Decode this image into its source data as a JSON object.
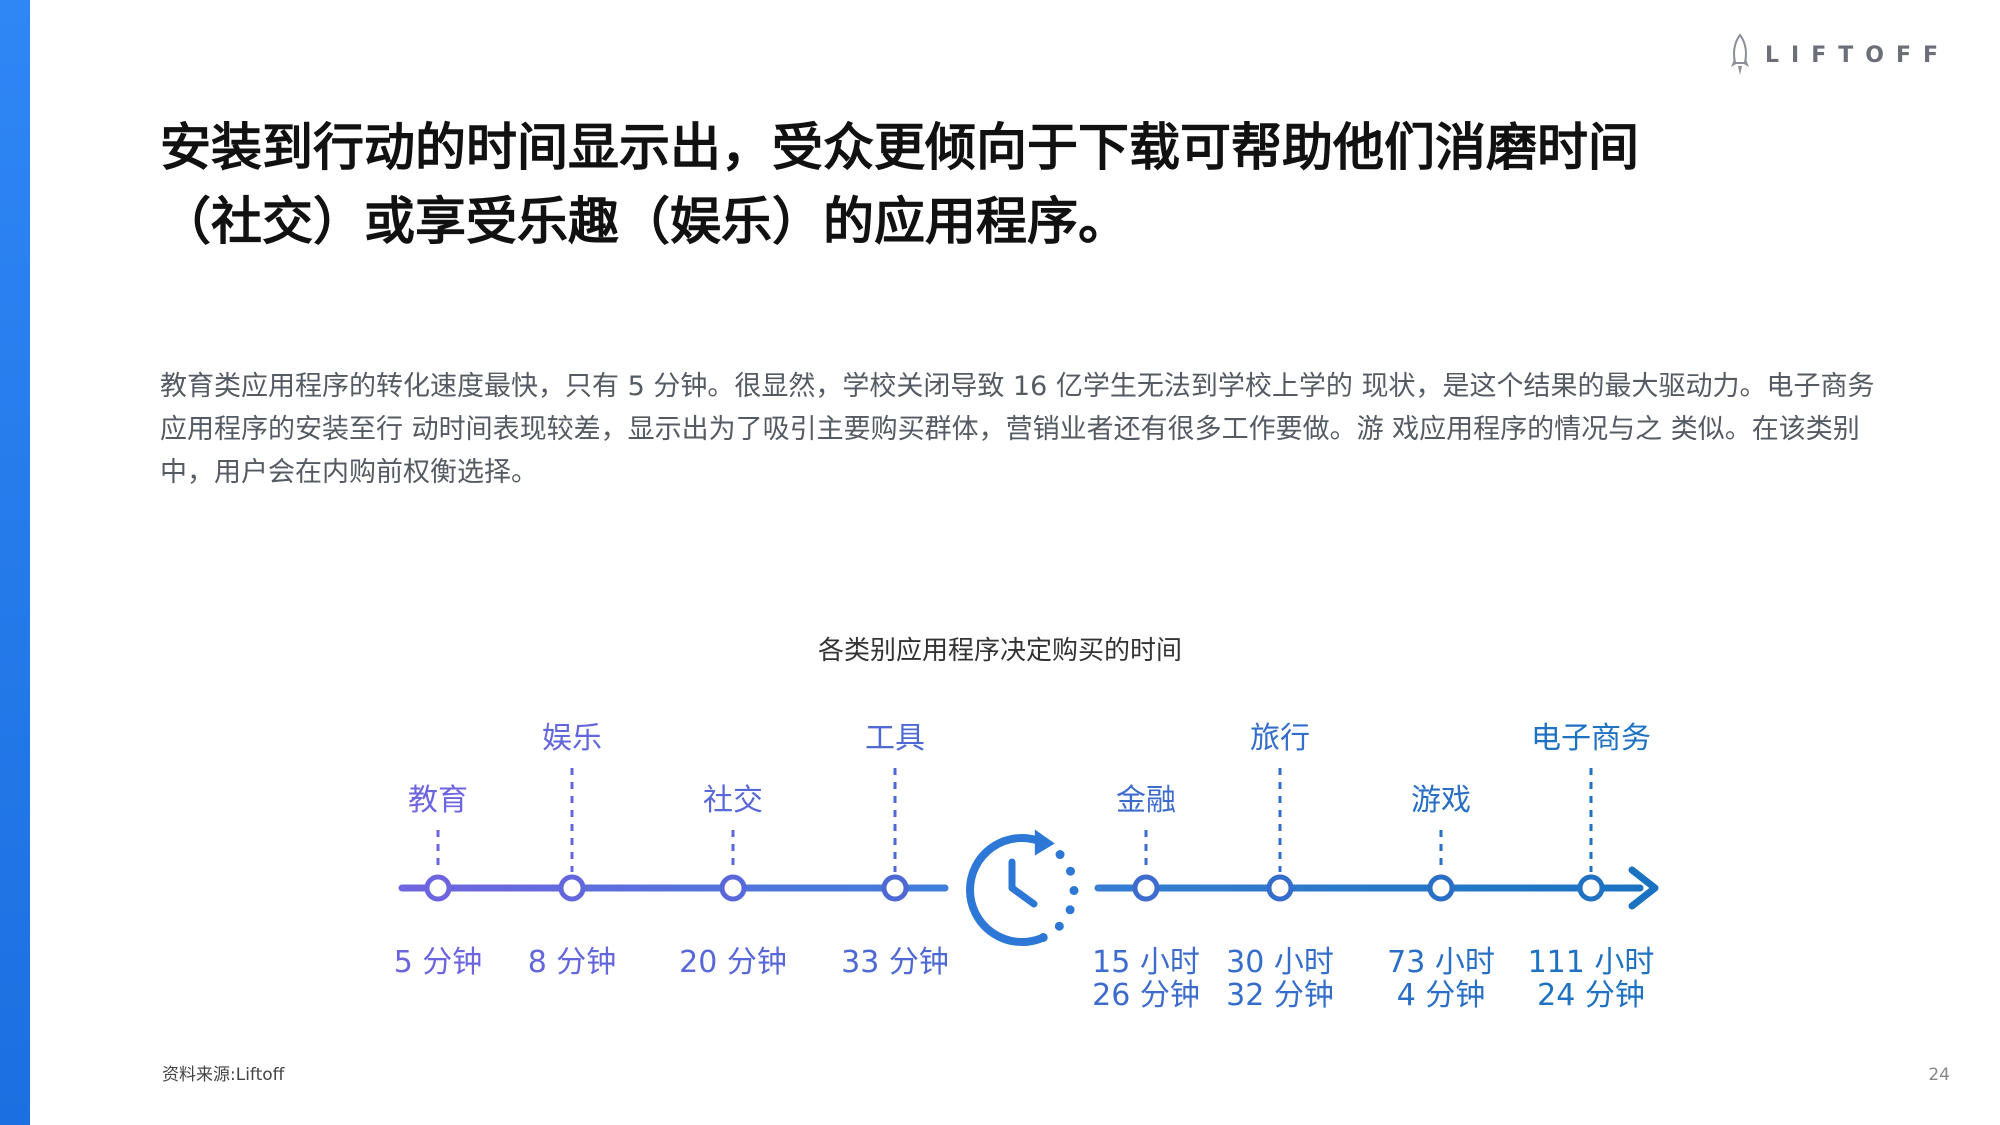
{
  "brand": {
    "logo_text": "LIFTOFF",
    "accent_color": "#1c6fe0",
    "timeline_start_color": "#7064e0",
    "timeline_end_color": "#1a72c0"
  },
  "headline": {
    "line1": "安装到行动的时间显示出，受众更倾向于下载可帮助他们消磨时间",
    "line2": "（社交）或享受乐趣（娱乐）的应用程序。"
  },
  "body": {
    "paragraph": "教育类应用程序的转化速度最快，只有 5 分钟。很显然，学校关闭导致 16 亿学生无法到学校上学的 现状，是这个结果的最大驱动力。电子商务应用程序的安装至行 动时间表现较差，显示出为了吸引主要购买群体，营销业者还有很多工作要做。游 戏应用程序的情况与之 类似。在该类别中，用户会在内购前权衡选择。"
  },
  "chart_data": {
    "type": "timeline",
    "title": "各类别应用程序决定购买的时间",
    "center_icon": "clock-icon",
    "items": [
      {
        "category": "教育",
        "time_lines": [
          "5 分钟"
        ]
      },
      {
        "category": "娱乐",
        "time_lines": [
          "8 分钟"
        ]
      },
      {
        "category": "社交",
        "time_lines": [
          "20 分钟"
        ]
      },
      {
        "category": "工具",
        "time_lines": [
          "33 分钟"
        ]
      },
      {
        "category": "金融",
        "time_lines": [
          "15 小时",
          "26 分钟"
        ]
      },
      {
        "category": "旅行",
        "time_lines": [
          "30 小时",
          "32 分钟"
        ]
      },
      {
        "category": "游戏",
        "time_lines": [
          "73 小时",
          "4 分钟"
        ]
      },
      {
        "category": "电子商务",
        "time_lines": [
          "111 小时",
          "24 分钟"
        ]
      }
    ]
  },
  "footer": {
    "source": "资料来源:Liftoff",
    "page_number": "24"
  }
}
